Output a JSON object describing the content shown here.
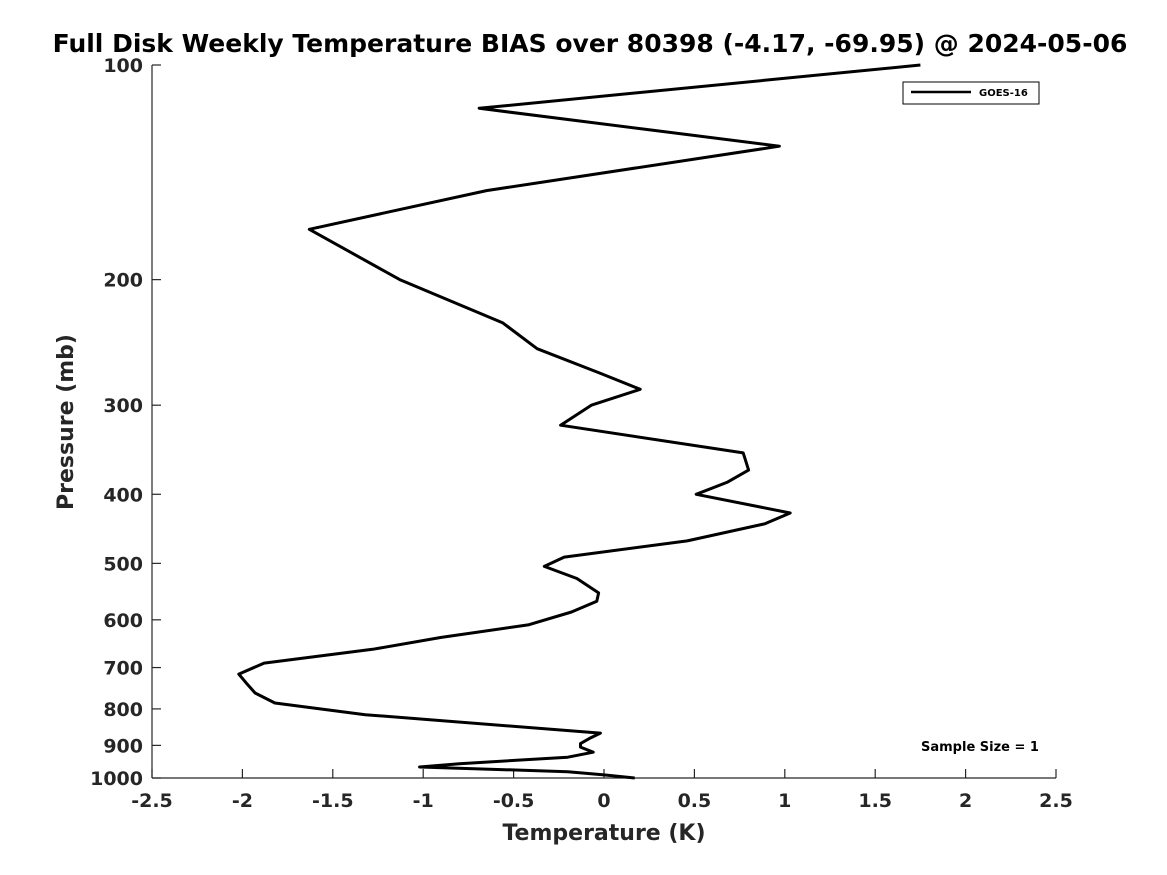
{
  "chart_data": {
    "type": "line",
    "title": "Full Disk Weekly Temperature BIAS over 80398 (-4.17, -69.95) @ 2024-05-06",
    "xlabel": "Temperature (K)",
    "ylabel": "Pressure (mb)",
    "xlim": [
      -2.5,
      2.5
    ],
    "ylim": [
      1000,
      100
    ],
    "y_scale": "log",
    "y_reversed": true,
    "grid": false,
    "legend_position": "top-right",
    "x_ticks": [
      -2.5,
      -2,
      -1.5,
      -1,
      -0.5,
      0,
      0.5,
      1,
      1.5,
      2,
      2.5
    ],
    "x_tick_labels": [
      "-2.5",
      "-2",
      "-1.5",
      "-1",
      "-0.5",
      "0",
      "0.5",
      "1",
      "1.5",
      "2",
      "2.5"
    ],
    "y_ticks": [
      100,
      200,
      300,
      400,
      500,
      600,
      700,
      800,
      900,
      1000
    ],
    "y_tick_labels": [
      "100",
      "200",
      "300",
      "400",
      "500",
      "600",
      "700",
      "800",
      "900",
      "1000"
    ],
    "series": [
      {
        "name": "GOES-16",
        "color": "#000000",
        "points": [
          [
            1.75,
            100
          ],
          [
            -0.69,
            115
          ],
          [
            0.97,
            130
          ],
          [
            -0.65,
            150
          ],
          [
            -1.63,
            170
          ],
          [
            -1.13,
            200
          ],
          [
            -0.56,
            230
          ],
          [
            -0.37,
            250
          ],
          [
            -0.03,
            270
          ],
          [
            0.2,
            285
          ],
          [
            -0.07,
            300
          ],
          [
            -0.24,
            320
          ],
          [
            0.77,
            350
          ],
          [
            0.8,
            370
          ],
          [
            0.68,
            385
          ],
          [
            0.51,
            400
          ],
          [
            1.03,
            425
          ],
          [
            0.89,
            440
          ],
          [
            0.46,
            465
          ],
          [
            -0.22,
            490
          ],
          [
            -0.33,
            505
          ],
          [
            -0.15,
            525
          ],
          [
            -0.03,
            550
          ],
          [
            -0.04,
            565
          ],
          [
            -0.18,
            585
          ],
          [
            -0.42,
            610
          ],
          [
            -0.9,
            635
          ],
          [
            -1.28,
            660
          ],
          [
            -1.88,
            690
          ],
          [
            -2.02,
            715
          ],
          [
            -1.98,
            735
          ],
          [
            -1.93,
            760
          ],
          [
            -1.82,
            785
          ],
          [
            -1.32,
            815
          ],
          [
            -0.02,
            865
          ],
          [
            -0.08,
            880
          ],
          [
            -0.13,
            895
          ],
          [
            -0.13,
            905
          ],
          [
            -0.06,
            920
          ],
          [
            -0.2,
            935
          ],
          [
            -0.8,
            955
          ],
          [
            -1.02,
            965
          ],
          [
            -0.2,
            980
          ],
          [
            0.0,
            990
          ],
          [
            0.17,
            1000
          ]
        ]
      }
    ],
    "annotation": "Sample Size = 1"
  }
}
